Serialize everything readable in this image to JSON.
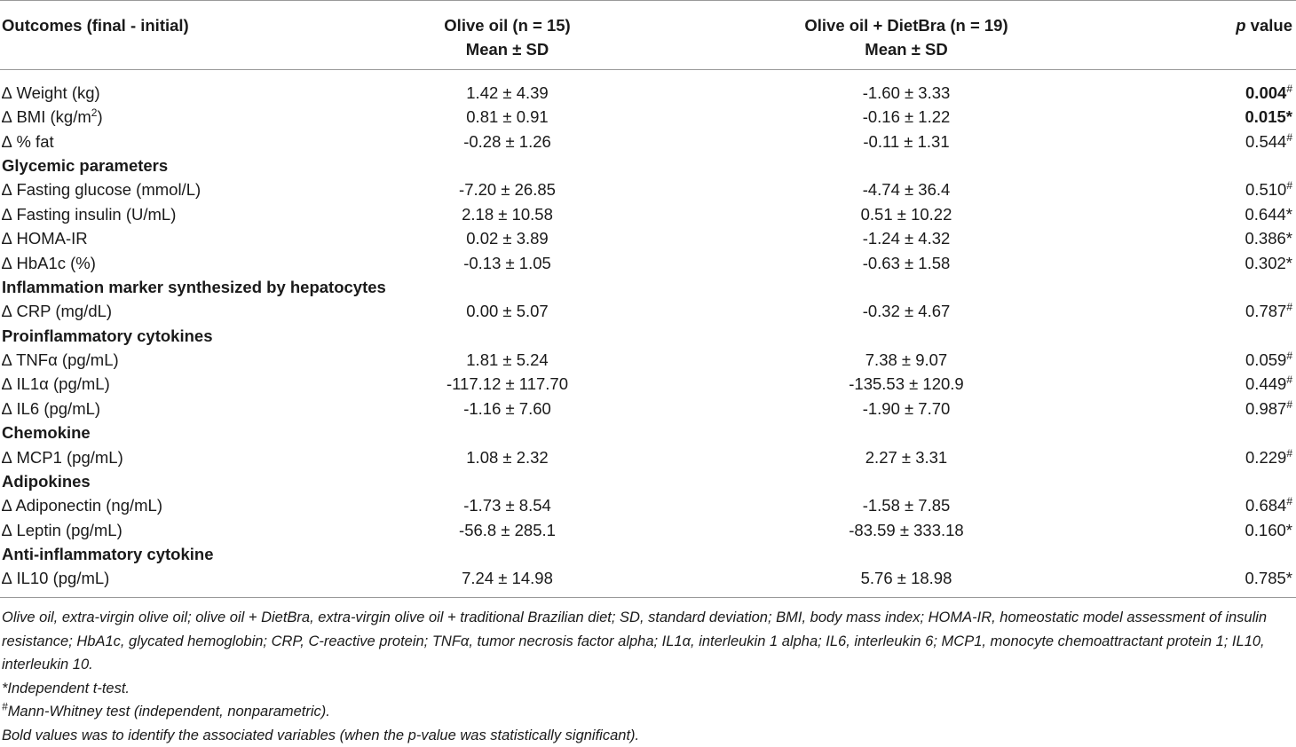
{
  "header": {
    "col1": "Outcomes (final - initial)",
    "col2_line1": "Olive oil (n = 15)",
    "col2_line2": "Mean ± SD",
    "col3_line1": "Olive oil + DietBra (n = 19)",
    "col3_line2": "Mean ± SD",
    "col4_italic": "p",
    "col4_rest": " value"
  },
  "rows": [
    {
      "type": "data",
      "label": "∆ Weight (kg)",
      "olive": "1.42 ± 4.39",
      "dietbra": "-1.60 ± 3.33",
      "p": "0.004",
      "mark": "#",
      "bold": true
    },
    {
      "type": "data",
      "label": "∆ BMI (kg/m",
      "label_sup": "2",
      "label_tail": ")",
      "olive": "0.81 ± 0.91",
      "dietbra": "-0.16 ± 1.22",
      "p": "0.015*",
      "mark": "",
      "bold": true
    },
    {
      "type": "data",
      "label": "∆ % fat",
      "olive": "-0.28 ± 1.26",
      "dietbra": "-0.11 ± 1.31",
      "p": "0.544",
      "mark": "#",
      "bold": false
    },
    {
      "type": "section",
      "label": "Glycemic parameters"
    },
    {
      "type": "data",
      "label": "∆ Fasting glucose (mmol/L)",
      "olive": "-7.20 ± 26.85",
      "dietbra": "-4.74 ± 36.4",
      "p": "0.510",
      "mark": "#",
      "bold": false
    },
    {
      "type": "data",
      "label": "∆ Fasting insulin (U/mL)",
      "olive": "2.18 ± 10.58",
      "dietbra": "0.51 ± 10.22",
      "p": "0.644*",
      "mark": "",
      "bold": false
    },
    {
      "type": "data",
      "label": "∆ HOMA-IR",
      "olive": "0.02 ± 3.89",
      "dietbra": "-1.24 ± 4.32",
      "p": "0.386*",
      "mark": "",
      "bold": false
    },
    {
      "type": "data",
      "label": "∆ HbA1c (%)",
      "olive": "-0.13 ± 1.05",
      "dietbra": "-0.63 ± 1.58",
      "p": "0.302*",
      "mark": "",
      "bold": false
    },
    {
      "type": "section",
      "label": "Inflammation marker synthesized by hepatocytes"
    },
    {
      "type": "data",
      "label": "∆ CRP (mg/dL)",
      "olive": "0.00 ± 5.07",
      "dietbra": "-0.32 ± 4.67",
      "p": "0.787",
      "mark": "#",
      "bold": false
    },
    {
      "type": "section",
      "label": "Proinflammatory cytokines"
    },
    {
      "type": "data",
      "label": "∆ TNFα (pg/mL)",
      "olive": "1.81 ± 5.24",
      "dietbra": "7.38 ± 9.07",
      "p": "0.059",
      "mark": "#",
      "bold": false
    },
    {
      "type": "data",
      "label": "∆ IL1α (pg/mL)",
      "olive": "-117.12 ± 117.70",
      "dietbra": "-135.53 ± 120.9",
      "p": "0.449",
      "mark": "#",
      "bold": false
    },
    {
      "type": "data",
      "label": "∆ IL6 (pg/mL)",
      "olive": "-1.16 ± 7.60",
      "dietbra": "-1.90 ± 7.70",
      "p": "0.987",
      "mark": "#",
      "bold": false
    },
    {
      "type": "section",
      "label": "Chemokine"
    },
    {
      "type": "data",
      "label": "∆ MCP1 (pg/mL)",
      "olive": "1.08 ± 2.32",
      "dietbra": "2.27 ± 3.31",
      "p": "0.229",
      "mark": "#",
      "bold": false
    },
    {
      "type": "section",
      "label": "Adipokines"
    },
    {
      "type": "data",
      "label": "∆ Adiponectin (ng/mL)",
      "olive": "-1.73 ± 8.54",
      "dietbra": "-1.58 ± 7.85",
      "p": "0.684",
      "mark": "#",
      "bold": false
    },
    {
      "type": "data",
      "label": "∆ Leptin (pg/mL)",
      "olive": "-56.8 ± 285.1",
      "dietbra": "-83.59 ± 333.18",
      "p": "0.160*",
      "mark": "",
      "bold": false
    },
    {
      "type": "section",
      "label": "Anti-inflammatory cytokine"
    },
    {
      "type": "data",
      "label": "∆ IL10 (pg/mL)",
      "olive": "7.24 ± 14.98",
      "dietbra": "5.76 ± 18.98",
      "p": "0.785*",
      "mark": "",
      "bold": false
    }
  ],
  "footnotes": {
    "abbreviations": "Olive oil, extra-virgin olive oil; olive oil + DietBra, extra-virgin olive oil + traditional Brazilian diet; SD, standard deviation; BMI, body mass index; HOMA-IR, homeostatic model assessment of insulin resistance; HbA1c, glycated hemoglobin; CRP, C-reactive protein; TNFα, tumor necrosis factor alpha; IL1α, interleukin 1 alpha; IL6, interleukin 6; MCP1, monocyte chemoattractant protein 1; IL10, interleukin 10.",
    "ttest": "*Independent t-test.",
    "mw_mark": "#",
    "mw_text": "Mann-Whitney test (independent, nonparametric).",
    "bold_note": "Bold values was to identify the associated variables (when the p-value was statistically significant)."
  }
}
